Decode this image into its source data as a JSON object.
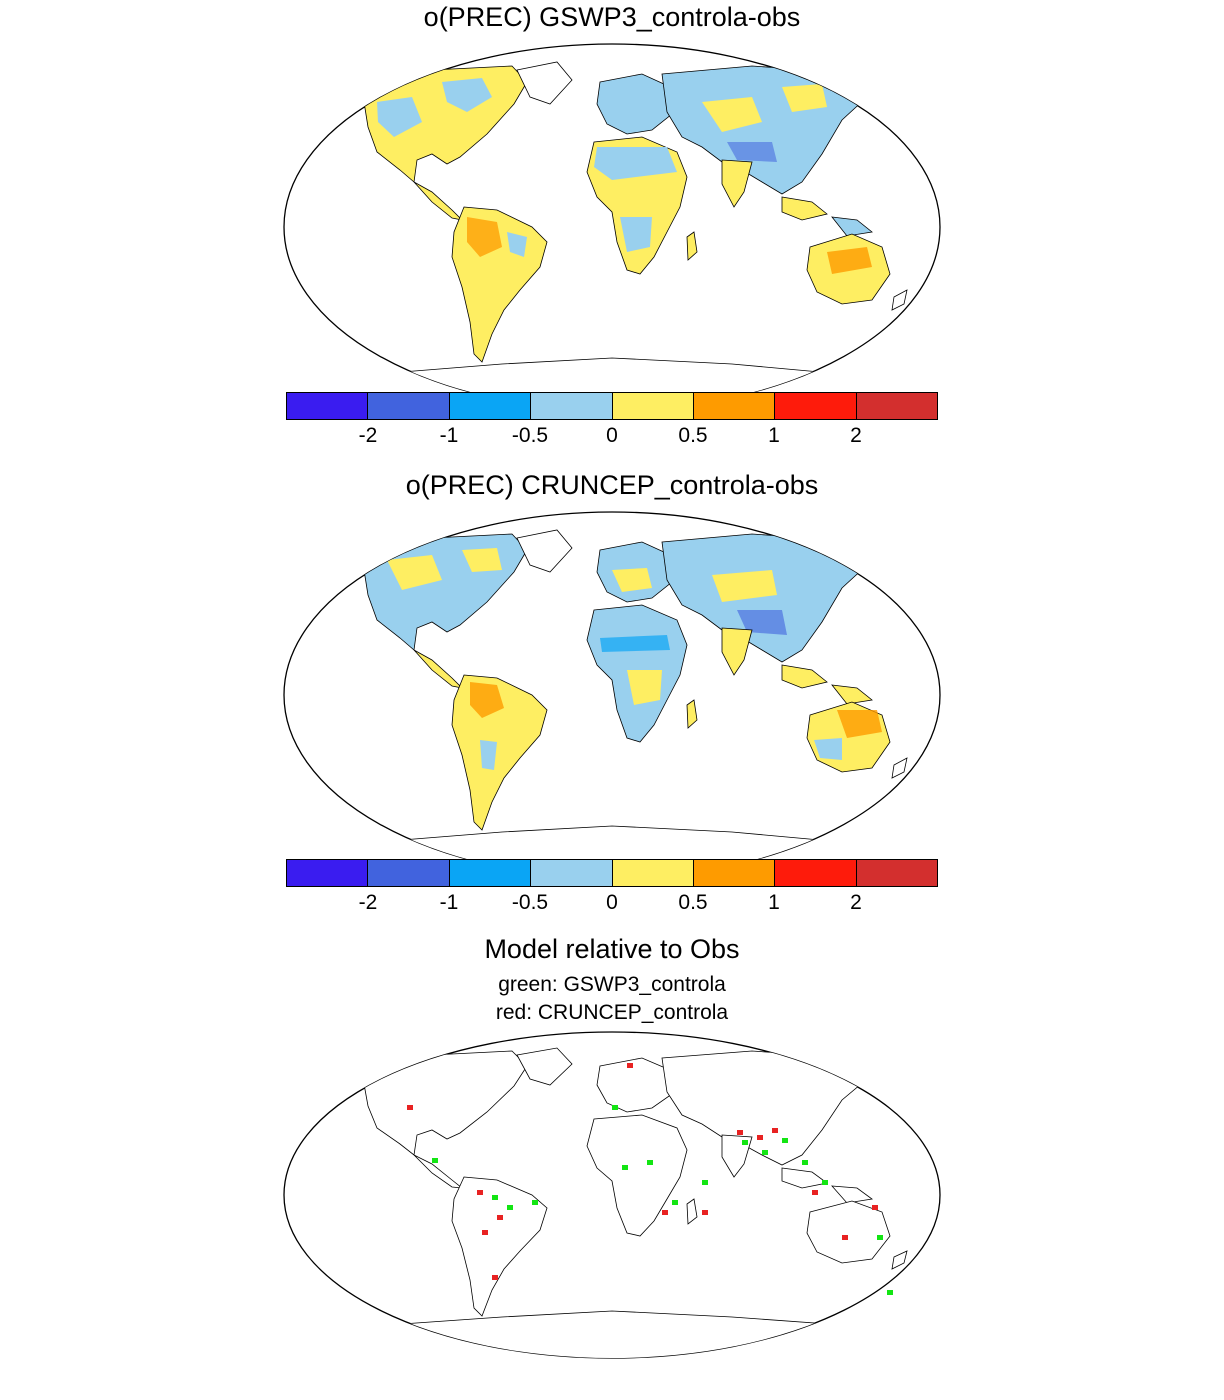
{
  "panels": [
    {
      "title": "o(PREC) GSWP3_controla-obs"
    },
    {
      "title": "o(PREC) CRUNCEP_controla-obs"
    }
  ],
  "colorbar": {
    "colors": [
      "#3a1cf0",
      "#4163de",
      "#0aa5f5",
      "#99d0ee",
      "#feee62",
      "#fe9b00",
      "#fe1b0b",
      "#d32f2e"
    ],
    "tick_labels": [
      "-2",
      "-1",
      "-0.5",
      "0",
      "0.5",
      "1",
      "2"
    ]
  },
  "relative": {
    "title": "Model relative to Obs",
    "legend_green": "green: GSWP3_controla",
    "legend_red": "red: CRUNCEP_controla"
  },
  "colors": {
    "land_base_1": "#99d0ee",
    "land_base_2": "#feee62",
    "green_marker": "#13e513",
    "red_marker": "#e82222"
  }
}
